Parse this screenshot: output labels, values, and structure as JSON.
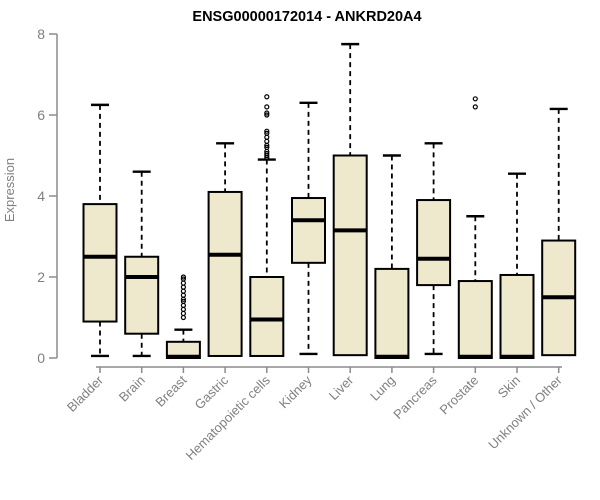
{
  "chart_data": {
    "type": "boxplot",
    "title": "ENSG00000172014 - ANKRD20A4",
    "xlabel": "",
    "ylabel": "Expression",
    "ylim": [
      0,
      8
    ],
    "yticks": [
      0,
      2,
      4,
      6,
      8
    ],
    "grid": false,
    "legend": "none",
    "colors": {
      "box_fill": "#EEE8CD",
      "box_border": "#000000",
      "median": "#000000",
      "whisker": "#000000",
      "axis_line": "#8c8c8c",
      "axis_text": "#808080",
      "title_text": "#000000",
      "background": "#ffffff"
    },
    "categories": [
      "Bladder",
      "Brain",
      "Breast",
      "Gastric",
      "Hematopoietic cells",
      "Kidney",
      "Liver",
      "Lung",
      "Pancreas",
      "Prostate",
      "Skin",
      "Unknown / Other"
    ],
    "series": [
      {
        "label": "Bladder",
        "whisker_low": 0.05,
        "q1": 0.9,
        "median": 2.5,
        "q3": 3.8,
        "whisker_high": 6.25,
        "outliers": []
      },
      {
        "label": "Brain",
        "whisker_low": 0.05,
        "q1": 0.6,
        "median": 2.0,
        "q3": 2.5,
        "whisker_high": 4.6,
        "outliers": []
      },
      {
        "label": "Breast",
        "whisker_low": 0.0,
        "q1": 0.0,
        "median": 0.03,
        "q3": 0.4,
        "whisker_high": 0.7,
        "outliers": [
          1.0,
          1.1,
          1.2,
          1.3,
          1.4,
          1.45,
          1.55,
          1.65,
          1.75,
          1.85,
          1.95,
          2.0
        ]
      },
      {
        "label": "Gastric",
        "whisker_low": 0.05,
        "q1": 0.05,
        "median": 2.55,
        "q3": 4.1,
        "whisker_high": 5.3,
        "outliers": []
      },
      {
        "label": "Hematopoietic cells",
        "whisker_low": 0.05,
        "q1": 0.05,
        "median": 0.95,
        "q3": 2.0,
        "whisker_high": 4.9,
        "outliers": [
          4.95,
          5.0,
          5.05,
          5.1,
          5.2,
          5.25,
          5.35,
          5.45,
          5.55,
          5.6,
          6.0,
          6.05,
          6.2,
          6.45
        ]
      },
      {
        "label": "Kidney",
        "whisker_low": 0.1,
        "q1": 2.35,
        "median": 3.4,
        "q3": 3.95,
        "whisker_high": 6.3,
        "outliers": []
      },
      {
        "label": "Liver",
        "whisker_low": 0.07,
        "q1": 0.07,
        "median": 3.15,
        "q3": 5.0,
        "whisker_high": 7.75,
        "outliers": []
      },
      {
        "label": "Lung",
        "whisker_low": 0.0,
        "q1": 0.0,
        "median": 0.03,
        "q3": 2.2,
        "whisker_high": 5.0,
        "outliers": []
      },
      {
        "label": "Pancreas",
        "whisker_low": 0.1,
        "q1": 1.8,
        "median": 2.45,
        "q3": 3.9,
        "whisker_high": 5.3,
        "outliers": []
      },
      {
        "label": "Prostate",
        "whisker_low": 0.0,
        "q1": 0.0,
        "median": 0.03,
        "q3": 1.9,
        "whisker_high": 3.5,
        "outliers": [
          6.2,
          6.4
        ]
      },
      {
        "label": "Skin",
        "whisker_low": 0.0,
        "q1": 0.0,
        "median": 0.03,
        "q3": 2.05,
        "whisker_high": 4.55,
        "outliers": []
      },
      {
        "label": "Unknown / Other",
        "whisker_low": 0.07,
        "q1": 0.07,
        "median": 1.5,
        "q3": 2.9,
        "whisker_high": 6.15,
        "outliers": []
      }
    ]
  }
}
